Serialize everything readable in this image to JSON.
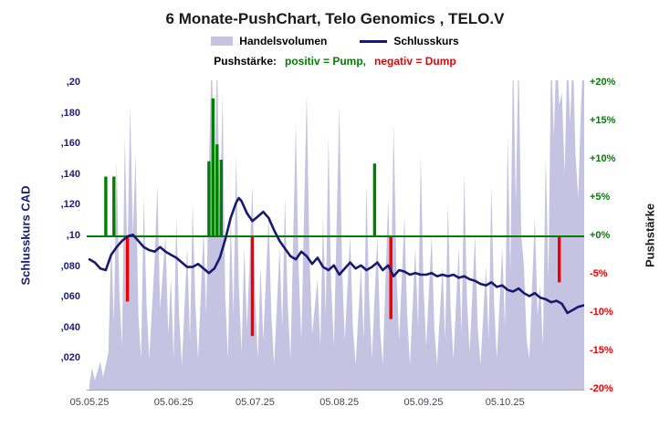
{
  "title": "6 Monate-PushChart, Telo Genomics , TELO.V",
  "legend": {
    "volume_label": "Handelsvolumen",
    "close_label": "Schlusskurs",
    "push_prefix": "Pushstärke:",
    "push_positive": "positiv = Pump,",
    "push_negative": "negativ = Dump"
  },
  "colors": {
    "volume": "#c6c3e2",
    "close_line": "#191970",
    "pump": "#008000",
    "dump": "#ee0000",
    "zero_line": "#008000",
    "left_axis_text": "#1b1b78",
    "right_axis_title": "#1a1a1a",
    "x_axis_text": "#44445a",
    "title_text": "#1a1a1a"
  },
  "chart_data": {
    "type": "combo",
    "title": "6 Monate-PushChart, Telo Genomics , TELO.V",
    "subtitle": "Pushstärke: positiv = Pump, negativ = Dump",
    "legend_position": "top",
    "grid": false,
    "x_axis": {
      "unit": "date (dd.mm.yy), ~6 months span",
      "range_days": [
        0,
        184
      ],
      "ticks": [
        {
          "day": 0,
          "label": "05.05.25"
        },
        {
          "day": 31,
          "label": "05.06.25"
        },
        {
          "day": 61,
          "label": "05.07.25"
        },
        {
          "day": 92,
          "label": "05.08.25"
        },
        {
          "day": 123,
          "label": "05.09.25"
        },
        {
          "day": 153,
          "label": "05.10.25"
        }
      ]
    },
    "left_axis": {
      "label": "Schlusskurs CAD",
      "range": [
        0,
        0.2
      ],
      "ticks": [
        {
          "value": 0.2,
          "label": ",20"
        },
        {
          "value": 0.18,
          "label": ",180"
        },
        {
          "value": 0.16,
          "label": ",160"
        },
        {
          "value": 0.14,
          "label": ",140"
        },
        {
          "value": 0.12,
          "label": ",120"
        },
        {
          "value": 0.1,
          "label": ",10"
        },
        {
          "value": 0.08,
          "label": ",080"
        },
        {
          "value": 0.06,
          "label": ",060"
        },
        {
          "value": 0.04,
          "label": ",040"
        },
        {
          "value": 0.02,
          "label": ",020"
        }
      ]
    },
    "right_axis": {
      "label": "Pushstärke",
      "unit": "%",
      "range": [
        -20,
        20
      ],
      "zero_line": 0,
      "ticks": [
        {
          "value": 20,
          "label": "+20%"
        },
        {
          "value": 15,
          "label": "+15%"
        },
        {
          "value": 10,
          "label": "+10%"
        },
        {
          "value": 5,
          "label": "+5%"
        },
        {
          "value": 0,
          "label": "+0%"
        },
        {
          "value": -5,
          "label": "-5%"
        },
        {
          "value": -10,
          "label": "-10%"
        },
        {
          "value": -15,
          "label": "-15%"
        },
        {
          "value": -20,
          "label": "-20%"
        }
      ]
    },
    "series": [
      {
        "name": "Handelsvolumen",
        "type": "area",
        "axis": "unlabeled volume axis (values estimated as fraction of plot height, spikes >1 are clipped at top)",
        "color": "#c6c3e2",
        "points": [
          [
            0,
            0.02
          ],
          [
            1,
            0.07
          ],
          [
            2,
            0.03
          ],
          [
            4,
            0.09
          ],
          [
            5,
            0.04
          ],
          [
            7,
            0.12
          ],
          [
            8,
            0.48
          ],
          [
            9,
            0.22
          ],
          [
            10,
            0.74
          ],
          [
            11,
            0.32
          ],
          [
            12,
            0.14
          ],
          [
            13,
            0.82
          ],
          [
            14,
            0.42
          ],
          [
            15,
            0.92
          ],
          [
            16,
            0.5
          ],
          [
            17,
            0.76
          ],
          [
            18,
            0.24
          ],
          [
            19,
            0.1
          ],
          [
            20,
            0.62
          ],
          [
            21,
            0.28
          ],
          [
            22,
            0.1
          ],
          [
            24,
            0.42
          ],
          [
            25,
            0.66
          ],
          [
            26,
            0.26
          ],
          [
            28,
            0.5
          ],
          [
            29,
            0.18
          ],
          [
            30,
            0.36
          ],
          [
            31,
            0.1
          ],
          [
            32,
            0.56
          ],
          [
            33,
            0.24
          ],
          [
            34,
            0.08
          ],
          [
            36,
            0.46
          ],
          [
            37,
            0.16
          ],
          [
            38,
            0.6
          ],
          [
            39,
            0.28
          ],
          [
            40,
            0.1
          ],
          [
            42,
            0.52
          ],
          [
            43,
            0.24
          ],
          [
            44,
            0.72
          ],
          [
            45,
            1.1
          ],
          [
            46,
            0.62
          ],
          [
            47,
            1.1
          ],
          [
            48,
            0.52
          ],
          [
            49,
            0.96
          ],
          [
            50,
            0.3
          ],
          [
            51,
            0.1
          ],
          [
            52,
            0.56
          ],
          [
            53,
            0.24
          ],
          [
            54,
            0.76
          ],
          [
            55,
            0.34
          ],
          [
            56,
            0.12
          ],
          [
            57,
            0.46
          ],
          [
            58,
            0.2
          ],
          [
            60,
            0.66
          ],
          [
            61,
            0.3
          ],
          [
            62,
            0.1
          ],
          [
            63,
            0.4
          ],
          [
            64,
            0.16
          ],
          [
            66,
            0.56
          ],
          [
            67,
            0.24
          ],
          [
            68,
            0.08
          ],
          [
            70,
            0.46
          ],
          [
            71,
            0.2
          ],
          [
            72,
            0.62
          ],
          [
            73,
            0.28
          ],
          [
            74,
            0.1
          ],
          [
            76,
            0.86
          ],
          [
            77,
            0.4
          ],
          [
            78,
            0.16
          ],
          [
            80,
            0.96
          ],
          [
            81,
            0.44
          ],
          [
            82,
            0.18
          ],
          [
            84,
            0.36
          ],
          [
            85,
            0.14
          ],
          [
            86,
            0.56
          ],
          [
            87,
            0.24
          ],
          [
            88,
            0.82
          ],
          [
            89,
            0.34
          ],
          [
            90,
            0.14
          ],
          [
            92,
            0.92
          ],
          [
            93,
            0.4
          ],
          [
            94,
            0.16
          ],
          [
            96,
            0.5
          ],
          [
            97,
            0.2
          ],
          [
            98,
            0.08
          ],
          [
            100,
            0.4
          ],
          [
            101,
            0.16
          ],
          [
            102,
            0.66
          ],
          [
            103,
            0.3
          ],
          [
            104,
            0.1
          ],
          [
            106,
            0.5
          ],
          [
            107,
            0.2
          ],
          [
            108,
            0.08
          ],
          [
            110,
            0.62
          ],
          [
            111,
            0.28
          ],
          [
            112,
            0.86
          ],
          [
            113,
            0.4
          ],
          [
            114,
            0.16
          ],
          [
            116,
            0.56
          ],
          [
            117,
            0.24
          ],
          [
            118,
            0.08
          ],
          [
            120,
            0.46
          ],
          [
            121,
            0.2
          ],
          [
            122,
            0.76
          ],
          [
            123,
            0.34
          ],
          [
            124,
            0.14
          ],
          [
            126,
            0.5
          ],
          [
            127,
            0.2
          ],
          [
            128,
            0.08
          ],
          [
            130,
            0.4
          ],
          [
            131,
            0.16
          ],
          [
            132,
            0.6
          ],
          [
            133,
            0.26
          ],
          [
            134,
            0.1
          ],
          [
            136,
            0.46
          ],
          [
            137,
            0.18
          ],
          [
            138,
            0.7
          ],
          [
            139,
            0.3
          ],
          [
            140,
            0.12
          ],
          [
            142,
            0.5
          ],
          [
            143,
            0.2
          ],
          [
            144,
            0.08
          ],
          [
            146,
            0.4
          ],
          [
            147,
            0.16
          ],
          [
            148,
            0.66
          ],
          [
            149,
            0.28
          ],
          [
            150,
            0.1
          ],
          [
            152,
            0.46
          ],
          [
            153,
            0.2
          ],
          [
            154,
            0.82
          ],
          [
            155,
            0.38
          ],
          [
            156,
            1.1
          ],
          [
            157,
            0.6
          ],
          [
            158,
            1.1
          ],
          [
            159,
            0.5
          ],
          [
            160,
            0.4
          ],
          [
            161,
            0.16
          ],
          [
            162,
            0.1
          ],
          [
            164,
            0.56
          ],
          [
            165,
            0.24
          ],
          [
            166,
            0.34
          ],
          [
            167,
            0.14
          ],
          [
            168,
            0.76
          ],
          [
            169,
            0.36
          ],
          [
            170,
            1.1
          ],
          [
            171,
            0.82
          ],
          [
            172,
            1.1
          ],
          [
            173,
            0.92
          ],
          [
            174,
            0.96
          ],
          [
            175,
            0.7
          ],
          [
            176,
            1.1
          ],
          [
            177,
            0.86
          ],
          [
            178,
            1.1
          ],
          [
            179,
            0.76
          ],
          [
            180,
            0.62
          ],
          [
            181,
            0.92
          ],
          [
            182,
            1.1
          ],
          [
            183,
            0.96
          ],
          [
            184,
            1.05
          ]
        ]
      },
      {
        "name": "Schlusskurs",
        "type": "line",
        "axis": "left",
        "color": "#191970",
        "points": [
          [
            0,
            0.085
          ],
          [
            2,
            0.083
          ],
          [
            4,
            0.079
          ],
          [
            6,
            0.078
          ],
          [
            8,
            0.088
          ],
          [
            10,
            0.093
          ],
          [
            12,
            0.097
          ],
          [
            14,
            0.1
          ],
          [
            16,
            0.101
          ],
          [
            18,
            0.097
          ],
          [
            20,
            0.093
          ],
          [
            22,
            0.091
          ],
          [
            24,
            0.09
          ],
          [
            26,
            0.093
          ],
          [
            28,
            0.09
          ],
          [
            30,
            0.088
          ],
          [
            32,
            0.086
          ],
          [
            34,
            0.083
          ],
          [
            36,
            0.08
          ],
          [
            38,
            0.08
          ],
          [
            40,
            0.082
          ],
          [
            42,
            0.079
          ],
          [
            44,
            0.076
          ],
          [
            46,
            0.079
          ],
          [
            48,
            0.086
          ],
          [
            50,
            0.098
          ],
          [
            52,
            0.112
          ],
          [
            54,
            0.122
          ],
          [
            55,
            0.125
          ],
          [
            56,
            0.123
          ],
          [
            58,
            0.115
          ],
          [
            60,
            0.11
          ],
          [
            62,
            0.113
          ],
          [
            64,
            0.116
          ],
          [
            66,
            0.112
          ],
          [
            68,
            0.104
          ],
          [
            70,
            0.097
          ],
          [
            72,
            0.092
          ],
          [
            74,
            0.087
          ],
          [
            76,
            0.085
          ],
          [
            78,
            0.09
          ],
          [
            80,
            0.087
          ],
          [
            82,
            0.082
          ],
          [
            84,
            0.086
          ],
          [
            86,
            0.08
          ],
          [
            88,
            0.078
          ],
          [
            90,
            0.081
          ],
          [
            92,
            0.075
          ],
          [
            94,
            0.079
          ],
          [
            96,
            0.083
          ],
          [
            98,
            0.079
          ],
          [
            100,
            0.081
          ],
          [
            102,
            0.078
          ],
          [
            104,
            0.08
          ],
          [
            106,
            0.083
          ],
          [
            108,
            0.078
          ],
          [
            110,
            0.081
          ],
          [
            112,
            0.074
          ],
          [
            114,
            0.078
          ],
          [
            116,
            0.077
          ],
          [
            118,
            0.075
          ],
          [
            120,
            0.076
          ],
          [
            122,
            0.075
          ],
          [
            124,
            0.075
          ],
          [
            126,
            0.076
          ],
          [
            128,
            0.074
          ],
          [
            130,
            0.075
          ],
          [
            132,
            0.074
          ],
          [
            134,
            0.075
          ],
          [
            136,
            0.073
          ],
          [
            138,
            0.074
          ],
          [
            140,
            0.072
          ],
          [
            142,
            0.071
          ],
          [
            144,
            0.069
          ],
          [
            146,
            0.068
          ],
          [
            148,
            0.07
          ],
          [
            150,
            0.067
          ],
          [
            152,
            0.068
          ],
          [
            154,
            0.065
          ],
          [
            156,
            0.064
          ],
          [
            158,
            0.066
          ],
          [
            160,
            0.063
          ],
          [
            162,
            0.061
          ],
          [
            164,
            0.063
          ],
          [
            166,
            0.06
          ],
          [
            168,
            0.059
          ],
          [
            170,
            0.057
          ],
          [
            172,
            0.058
          ],
          [
            174,
            0.056
          ],
          [
            176,
            0.05
          ],
          [
            178,
            0.052
          ],
          [
            180,
            0.054
          ],
          [
            182,
            0.055
          ]
        ]
      },
      {
        "name": "Pump",
        "type": "bar",
        "axis": "right",
        "color": "#008000",
        "points": [
          [
            6,
            7.8
          ],
          [
            9,
            7.8
          ],
          [
            44,
            9.8
          ],
          [
            45.5,
            18
          ],
          [
            47,
            12
          ],
          [
            48.5,
            10
          ],
          [
            105,
            9.5
          ]
        ]
      },
      {
        "name": "Dump",
        "type": "bar",
        "axis": "right",
        "color": "#ee0000",
        "points": [
          [
            14,
            -8.5
          ],
          [
            60,
            -13
          ],
          [
            111,
            -10.8
          ],
          [
            173,
            -6
          ]
        ]
      }
    ]
  }
}
